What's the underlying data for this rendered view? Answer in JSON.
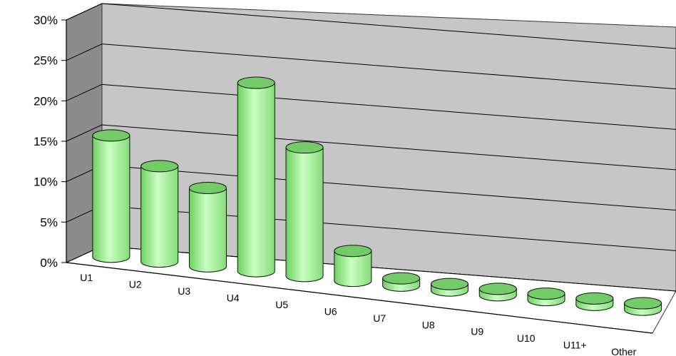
{
  "chart_data": {
    "type": "bar",
    "style": "3d-cylinder",
    "categories": [
      "U1",
      "U2",
      "U3",
      "U4",
      "U5",
      "U6",
      "U7",
      "U8",
      "U9",
      "U10",
      "U11+",
      "Other"
    ],
    "values": [
      15.0,
      11.8,
      9.7,
      23.3,
      15.9,
      3.7,
      0.9,
      0.4,
      0.1,
      0.3,
      0.1,
      0.8
    ],
    "y_ticks": [
      "0%",
      "5%",
      "10%",
      "15%",
      "20%",
      "25%",
      "30%"
    ],
    "ylim": [
      0,
      30
    ],
    "grid": true,
    "colors": {
      "bar_body": "#aaf5a0",
      "bar_top": "#74cc68",
      "bar_stroke": "#111111",
      "back_wall": "#c6c6c6",
      "side_wall": "#8c8c8c",
      "floor": "#ffffff"
    }
  }
}
